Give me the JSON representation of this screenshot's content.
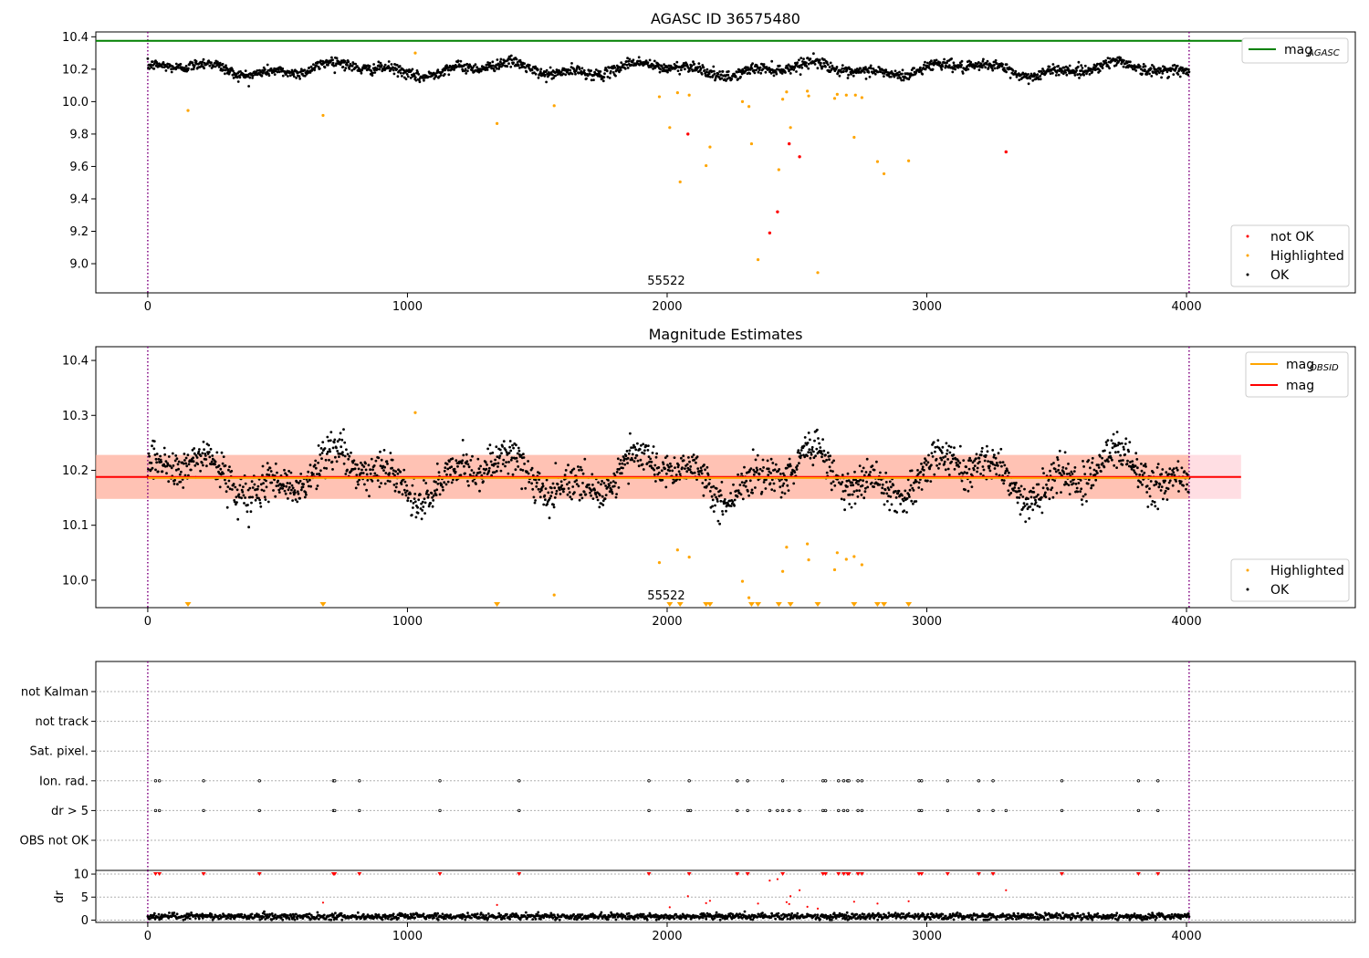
{
  "colors": {
    "ok": "#000000",
    "highlighted": "#ffa500",
    "not_ok": "#ff0000",
    "agasc_line": "#008000",
    "obsid_line": "#ffa500",
    "mag_line": "#ff0000",
    "obs_boundary": "#800080",
    "band_orange": "#ffa07a",
    "band_pink": "#ffb6c1",
    "grid": "#b0b0b0"
  },
  "chart_data": [
    {
      "id": "agasc",
      "type": "scatter",
      "title": "AGASC ID 36575480",
      "xlim": [
        -200,
        4650
      ],
      "ylim": [
        8.82,
        10.43
      ],
      "xticks": [
        0,
        1000,
        2000,
        3000,
        4000
      ],
      "yticks": [
        9.0,
        9.2,
        9.4,
        9.6,
        9.8,
        10.0,
        10.2,
        10.4
      ],
      "ytick_labels": [
        "9.0",
        "9.2",
        "9.4",
        "9.6",
        "9.8",
        "10.0",
        "10.2",
        "10.4"
      ],
      "obs_boundaries": [
        0,
        4010
      ],
      "obsid_label": "55522",
      "obsid_label_x": 2000,
      "mag_agasc": 10.375,
      "ok_series": {
        "name": "OK",
        "x_range": [
          0,
          4010
        ],
        "baseline": 10.2,
        "amplitude": 0.05,
        "noise": 0.03,
        "n": 2000
      },
      "highlighted": {
        "name": "Highlighted",
        "x": [
          155,
          675,
          1345,
          1565,
          1030,
          1970,
          2010,
          2040,
          2050,
          2085,
          2150,
          2165,
          2290,
          2315,
          2325,
          2350,
          2430,
          2445,
          2460,
          2475,
          2540,
          2545,
          2580,
          2645,
          2655,
          2690,
          2720,
          2725,
          2750,
          2810,
          2835,
          2930
        ],
        "y": [
          9.945,
          9.915,
          9.865,
          9.975,
          10.3,
          10.03,
          9.84,
          10.055,
          9.505,
          10.04,
          9.605,
          9.72,
          10.0,
          9.97,
          9.74,
          9.025,
          9.58,
          10.015,
          10.06,
          9.84,
          10.065,
          10.035,
          8.945,
          10.02,
          10.045,
          10.04,
          9.78,
          10.04,
          10.025,
          9.63,
          9.555,
          9.635
        ]
      },
      "not_ok": {
        "name": "not OK",
        "x": [
          2080,
          2395,
          2425,
          2470,
          2510,
          3305
        ],
        "y": [
          9.8,
          9.19,
          9.32,
          9.74,
          9.66,
          9.69
        ]
      },
      "legend_lines": {
        "label": "mag",
        "subscript": "AGASC"
      },
      "legend_points": [
        "not OK",
        "Highlighted",
        "OK"
      ]
    },
    {
      "id": "estimates",
      "type": "scatter",
      "title": "Magnitude Estimates",
      "xlim": [
        -200,
        4650
      ],
      "ylim": [
        9.95,
        10.425
      ],
      "xticks": [
        0,
        1000,
        2000,
        3000,
        4000
      ],
      "yticks": [
        10.0,
        10.1,
        10.2,
        10.3,
        10.4
      ],
      "ytick_labels": [
        "10.0",
        "10.1",
        "10.2",
        "10.3",
        "10.4"
      ],
      "obs_boundaries": [
        0,
        4010
      ],
      "obsid_label": "55522",
      "obsid_label_x": 2000,
      "mag": 10.188,
      "mag_obsid": 10.186,
      "band": [
        10.148,
        10.228
      ],
      "band_xmax": 4210,
      "obsid_xmax": 4010,
      "ok_series": {
        "name": "OK",
        "x_range": [
          0,
          4010
        ],
        "baseline": 10.19,
        "amplitude": 0.05,
        "noise": 0.03,
        "n": 2000
      },
      "highlighted": {
        "name": "Highlighted",
        "x": [
          1030,
          1565,
          1970,
          2040,
          2085,
          2290,
          2315,
          2445,
          2460,
          2540,
          2545,
          2645,
          2655,
          2690,
          2720,
          2750
        ],
        "y": [
          10.305,
          9.973,
          10.032,
          10.055,
          10.042,
          9.998,
          9.968,
          10.016,
          10.06,
          10.066,
          10.037,
          10.019,
          10.05,
          10.038,
          10.043,
          10.028
        ]
      },
      "below_range_markers": [
        155,
        675,
        1345,
        2010,
        2050,
        2150,
        2165,
        2325,
        2350,
        2430,
        2475,
        2580,
        2720,
        2810,
        2835,
        2930
      ],
      "legend_lines": [
        {
          "label": "mag",
          "subscript": "OBSID"
        },
        {
          "label": "mag",
          "subscript": ""
        }
      ],
      "legend_points": [
        "Highlighted",
        "OK"
      ]
    },
    {
      "id": "flags",
      "type": "scatter",
      "title": "",
      "xlim": [
        -200,
        4650
      ],
      "xticks": [
        0,
        1000,
        2000,
        3000,
        4000
      ],
      "categories": [
        "not Kalman",
        "not track",
        "Sat. pixel.",
        "Ion. rad.",
        "dr > 5",
        "OBS not OK"
      ],
      "obs_boundaries": [
        0,
        4010
      ],
      "ion_rad_x": [
        30,
        45,
        215,
        430,
        715,
        720,
        815,
        1125,
        1430,
        1930,
        2085,
        2270,
        2310,
        2445,
        2600,
        2610,
        2660,
        2680,
        2695,
        2700,
        2735,
        2750,
        2970,
        2980,
        3080,
        3200,
        3255,
        3520,
        3815,
        3890
      ],
      "dr5_x": [
        30,
        45,
        215,
        430,
        715,
        720,
        815,
        1125,
        1430,
        1930,
        2080,
        2090,
        2270,
        2310,
        2395,
        2425,
        2445,
        2470,
        2510,
        2600,
        2610,
        2660,
        2680,
        2695,
        2735,
        2750,
        2970,
        2980,
        3080,
        3200,
        3255,
        3305,
        3520,
        3815,
        3890
      ]
    },
    {
      "id": "dr",
      "type": "scatter",
      "ylabel": "dr",
      "xlim": [
        -200,
        4650
      ],
      "ylim": [
        -0.5,
        10.8
      ],
      "xticks": [
        0,
        1000,
        2000,
        3000,
        4000
      ],
      "yticks": [
        0,
        5,
        10
      ],
      "ytick_labels": [
        "0",
        "5",
        "10"
      ],
      "obs_boundaries": [
        0,
        4010
      ],
      "ok_series": {
        "name": "OK",
        "x_range": [
          0,
          4010
        ],
        "baseline": 0.8,
        "noise": 0.35,
        "n": 1700
      },
      "clipped_red_x": [
        30,
        45,
        215,
        430,
        715,
        720,
        815,
        1125,
        1430,
        1930,
        2085,
        2270,
        2310,
        2445,
        2600,
        2610,
        2660,
        2680,
        2695,
        2700,
        2735,
        2750,
        2970,
        2980,
        3080,
        3200,
        3255,
        3520,
        3815,
        3890
      ],
      "red": {
        "x": [
          675,
          1345,
          2010,
          2080,
          2150,
          2165,
          2350,
          2395,
          2425,
          2470,
          2475,
          2510,
          2540,
          2580,
          2720,
          2810,
          2930,
          3305,
          2460
        ],
        "y": [
          3.8,
          3.3,
          2.8,
          5.2,
          3.7,
          4.2,
          3.6,
          8.6,
          8.9,
          3.5,
          5.2,
          6.5,
          2.9,
          2.5,
          4.0,
          3.6,
          4.1,
          6.5,
          3.9
        ]
      }
    }
  ]
}
